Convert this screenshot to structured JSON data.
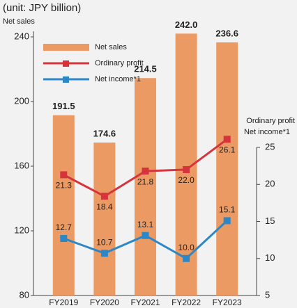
{
  "chart_data": {
    "type": "bar_line",
    "title": "(unit: JPY billion)",
    "y_label": "Net sales",
    "y2_label": [
      "Ordinary profit",
      "Net income*1"
    ],
    "categories": [
      "FY2019",
      "FY2020",
      "FY2021",
      "FY2022",
      "FY2023"
    ],
    "series": [
      {
        "name": "Net sales",
        "type": "bar",
        "color": "#eb9a63",
        "values": [
          191.5,
          174.6,
          214.5,
          242.0,
          236.6
        ],
        "value_labels": [
          "191.5",
          "174.6",
          "214.5",
          "242.0",
          "236.6"
        ]
      },
      {
        "name": "Ordinary profit",
        "type": "line",
        "axis": "y2",
        "color": "#d6343c",
        "values": [
          21.3,
          18.4,
          21.8,
          22.0,
          26.1
        ],
        "value_labels": [
          "21.3",
          "18.4",
          "21.8",
          "22.0",
          "26.1"
        ]
      },
      {
        "name": "Net income*1",
        "type": "line",
        "axis": "y2",
        "color": "#2d86c6",
        "values": [
          12.7,
          10.7,
          13.1,
          10.0,
          15.1
        ],
        "value_labels": [
          "12.7",
          "10.7",
          "13.1",
          "10.0",
          "15.1"
        ]
      }
    ],
    "ylim": [
      80,
      240
    ],
    "yticks": [
      80,
      120,
      160,
      200,
      240
    ],
    "y2lim": [
      5,
      25
    ],
    "y2ticks": [
      5,
      10,
      15,
      20,
      25
    ],
    "legend": "upper left"
  }
}
